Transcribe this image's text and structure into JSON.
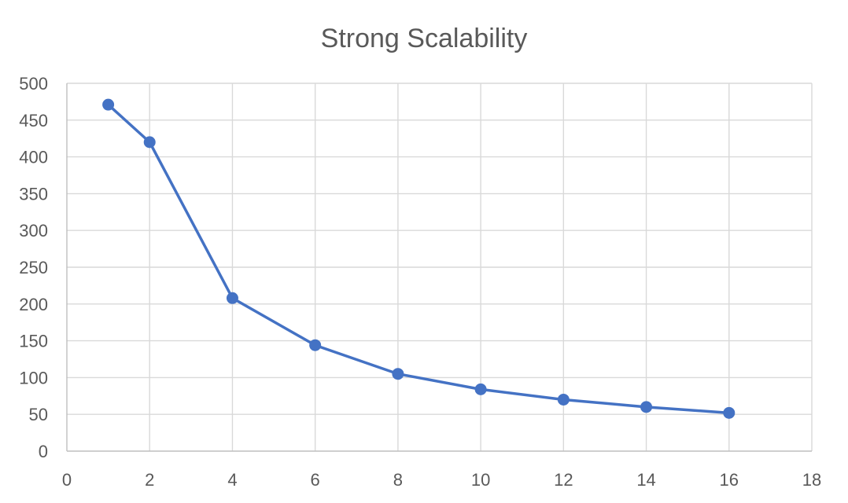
{
  "chart_data": {
    "type": "scatter",
    "title": "Strong Scalability",
    "xlabel": "",
    "ylabel": "",
    "xlim": [
      0,
      18
    ],
    "ylim": [
      0,
      500
    ],
    "xticks": [
      0,
      2,
      4,
      6,
      8,
      10,
      12,
      14,
      16,
      18
    ],
    "yticks": [
      0,
      50,
      100,
      150,
      200,
      250,
      300,
      350,
      400,
      450,
      500
    ],
    "xtick_labels": [
      "0",
      "2",
      "4",
      "6",
      "8",
      "10",
      "12",
      "14",
      "16",
      "18"
    ],
    "ytick_labels": [
      "0",
      "50",
      "100",
      "150",
      "200",
      "250",
      "300",
      "350",
      "400",
      "450",
      "500"
    ],
    "grid": true,
    "legend": "none",
    "series": [
      {
        "style": "lines-and-markers",
        "color": "#4472c4",
        "points": [
          {
            "x": 1,
            "y": 471
          },
          {
            "x": 2,
            "y": 420
          },
          {
            "x": 4,
            "y": 208
          },
          {
            "x": 6,
            "y": 144
          },
          {
            "x": 8,
            "y": 105
          },
          {
            "x": 10,
            "y": 84
          },
          {
            "x": 12,
            "y": 70
          },
          {
            "x": 14,
            "y": 60
          },
          {
            "x": 16,
            "y": 52
          }
        ]
      }
    ]
  }
}
